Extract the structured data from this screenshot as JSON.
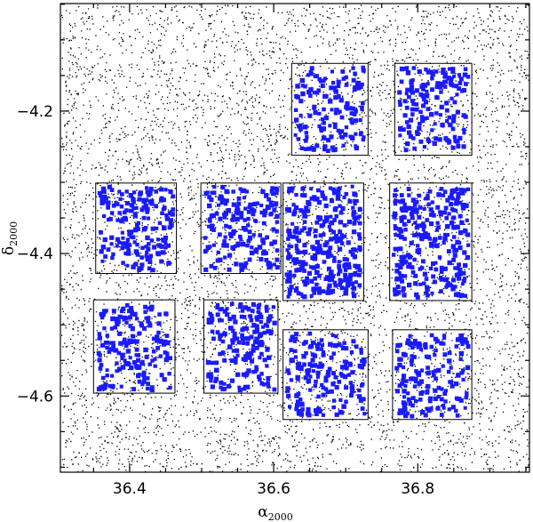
{
  "chart_data": {
    "type": "scatter",
    "title": "",
    "xlabel": "α",
    "xlabel_sub": "2000",
    "ylabel": "δ",
    "ylabel_sub": "2000",
    "xlim": [
      36.304,
      36.955
    ],
    "ylim": [
      -4.707,
      -4.049
    ],
    "x_axis_direction": "increasing-right",
    "xticks": [
      36.4,
      36.6,
      36.8
    ],
    "xtick_labels": [
      "36.4",
      "36.6",
      "36.8"
    ],
    "yticks": [
      -4.2,
      -4.4,
      -4.6
    ],
    "ytick_labels": [
      "−4.2",
      "−4.4",
      "−4.6"
    ],
    "grid": false,
    "legend": "none",
    "colors": {
      "background_sources": "#000000",
      "selected_sources": "#1a1aff",
      "fields": "#000000"
    },
    "series": [
      {
        "marker": "dot",
        "color": "#000000",
        "count": 14000,
        "note_distribution": "uniform over full plot area"
      },
      {
        "marker": "square",
        "color": "#1a1aff",
        "distribution": "inside pointing fields"
      }
    ],
    "fields": [
      {
        "ra": [
          36.625,
          36.731
        ],
        "dec": [
          -4.262,
          -4.133
        ]
      },
      {
        "ra": [
          36.768,
          36.875
        ],
        "dec": [
          -4.262,
          -4.133
        ]
      },
      {
        "ra": [
          36.353,
          36.465
        ],
        "dec": [
          -4.428,
          -4.301
        ]
      },
      {
        "ra": [
          36.499,
          36.61
        ],
        "dec": [
          -4.428,
          -4.301
        ]
      },
      {
        "ra": [
          36.613,
          36.725
        ],
        "dec": [
          -4.466,
          -4.301
        ]
      },
      {
        "ra": [
          36.761,
          36.875
        ],
        "dec": [
          -4.466,
          -4.301
        ]
      },
      {
        "ra": [
          36.35,
          36.463
        ],
        "dec": [
          -4.596,
          -4.465
        ]
      },
      {
        "ra": [
          36.503,
          36.606
        ],
        "dec": [
          -4.596,
          -4.465
        ]
      },
      {
        "ra": [
          36.613,
          36.731
        ],
        "dec": [
          -4.633,
          -4.507
        ]
      },
      {
        "ra": [
          36.765,
          36.875
        ],
        "dec": [
          -4.633,
          -4.507
        ]
      }
    ],
    "field_source_counts": [
      140,
      150,
      180,
      170,
      300,
      270,
      170,
      170,
      160,
      160
    ]
  }
}
